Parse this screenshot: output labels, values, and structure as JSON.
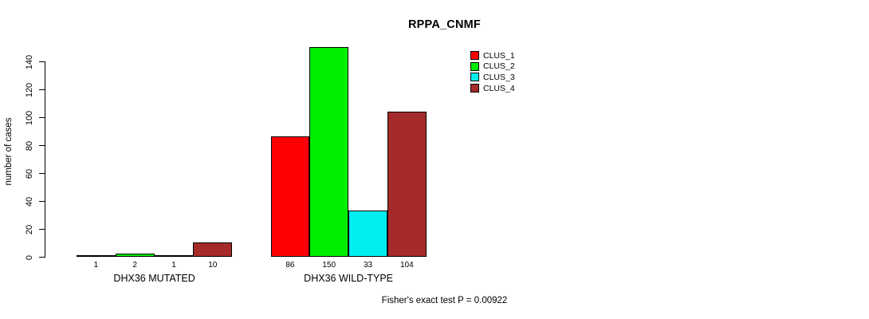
{
  "chart_data": {
    "type": "bar",
    "title": "RPPA_CNMF",
    "ylabel": "number of cases",
    "xlabel": "",
    "ylim": [
      0,
      140
    ],
    "yticks": [
      0,
      20,
      40,
      60,
      80,
      100,
      120,
      140
    ],
    "grid": false,
    "legend_position": "top-right-inside",
    "categories": [
      "DHX36 MUTATED",
      "DHX36 WILD-TYPE"
    ],
    "series": [
      {
        "name": "CLUS_1",
        "color": "#FF0000",
        "values": [
          1,
          86
        ]
      },
      {
        "name": "CLUS_2",
        "color": "#00EE00",
        "values": [
          2,
          150
        ]
      },
      {
        "name": "CLUS_3",
        "color": "#00EEEE",
        "values": [
          1,
          33
        ]
      },
      {
        "name": "CLUS_4",
        "color": "#A52A2A",
        "values": [
          10,
          104
        ]
      }
    ],
    "groups": [
      {
        "label": "DHX36 MUTATED",
        "values": [
          1,
          2,
          1,
          10
        ]
      },
      {
        "label": "DHX36 WILD-TYPE",
        "values": [
          86,
          150,
          33,
          104
        ]
      }
    ],
    "annotation": "Fisher's exact test P = 0.00922"
  }
}
